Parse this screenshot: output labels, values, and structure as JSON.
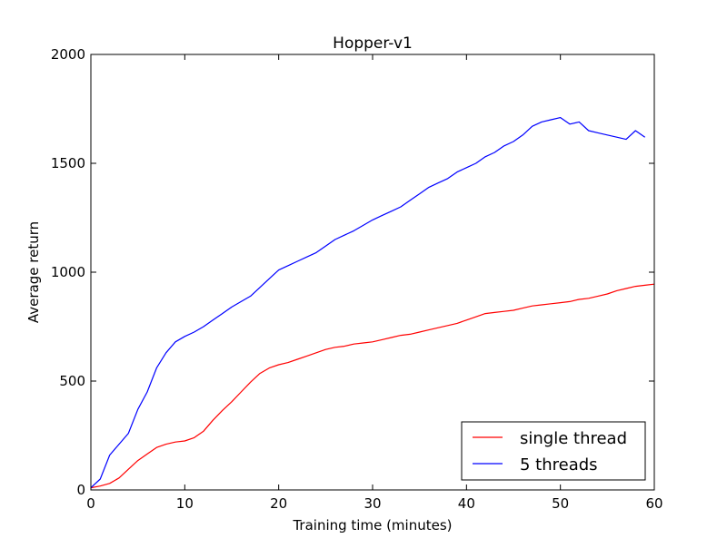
{
  "chart_data": {
    "type": "line",
    "title": "Hopper-v1",
    "xlabel": "Training time (minutes)",
    "ylabel": "Average return",
    "xlim": [
      0,
      60
    ],
    "ylim": [
      0,
      2000
    ],
    "xticks": [
      0,
      10,
      20,
      30,
      40,
      50,
      60
    ],
    "yticks": [
      0,
      500,
      1000,
      1500,
      2000
    ],
    "grid": false,
    "legend_position": "lower-right",
    "series": [
      {
        "name": "single thread",
        "color": "#ff0000",
        "x": [
          0,
          1,
          2,
          3,
          4,
          5,
          6,
          7,
          8,
          9,
          10,
          11,
          12,
          13,
          14,
          15,
          16,
          17,
          18,
          19,
          20,
          21,
          22,
          23,
          24,
          25,
          26,
          27,
          28,
          29,
          30,
          31,
          32,
          33,
          34,
          35,
          36,
          37,
          38,
          39,
          40,
          41,
          42,
          43,
          44,
          45,
          46,
          47,
          48,
          49,
          50,
          51,
          52,
          53,
          54,
          55,
          56,
          57,
          58,
          59,
          60
        ],
        "y": [
          10,
          18,
          30,
          55,
          95,
          135,
          165,
          195,
          210,
          220,
          225,
          240,
          270,
          320,
          365,
          405,
          450,
          495,
          535,
          560,
          575,
          585,
          600,
          615,
          630,
          645,
          655,
          660,
          670,
          675,
          680,
          690,
          700,
          710,
          715,
          725,
          735,
          745,
          755,
          765,
          780,
          795,
          810,
          815,
          820,
          825,
          835,
          845,
          850,
          855,
          860,
          865,
          875,
          880,
          890,
          900,
          915,
          925,
          935,
          940,
          945
        ]
      },
      {
        "name": "5 threads",
        "color": "#0000ff",
        "x": [
          0,
          1,
          2,
          3,
          4,
          5,
          6,
          7,
          8,
          9,
          10,
          11,
          12,
          13,
          14,
          15,
          16,
          17,
          18,
          19,
          20,
          21,
          22,
          23,
          24,
          25,
          26,
          27,
          28,
          29,
          30,
          31,
          32,
          33,
          34,
          35,
          36,
          37,
          38,
          39,
          40,
          41,
          42,
          43,
          44,
          45,
          46,
          47,
          48,
          49,
          50,
          51,
          52,
          53,
          54,
          55,
          56,
          57,
          58,
          59
        ],
        "y": [
          10,
          50,
          160,
          210,
          260,
          370,
          450,
          560,
          630,
          680,
          705,
          725,
          750,
          780,
          810,
          840,
          865,
          890,
          930,
          970,
          1010,
          1030,
          1050,
          1070,
          1090,
          1120,
          1150,
          1170,
          1190,
          1215,
          1240,
          1260,
          1280,
          1300,
          1330,
          1360,
          1390,
          1410,
          1430,
          1460,
          1480,
          1500,
          1530,
          1550,
          1580,
          1600,
          1630,
          1670,
          1690,
          1700,
          1710,
          1680,
          1690,
          1650,
          1640,
          1630,
          1620,
          1610,
          1650,
          1620
        ]
      }
    ]
  }
}
